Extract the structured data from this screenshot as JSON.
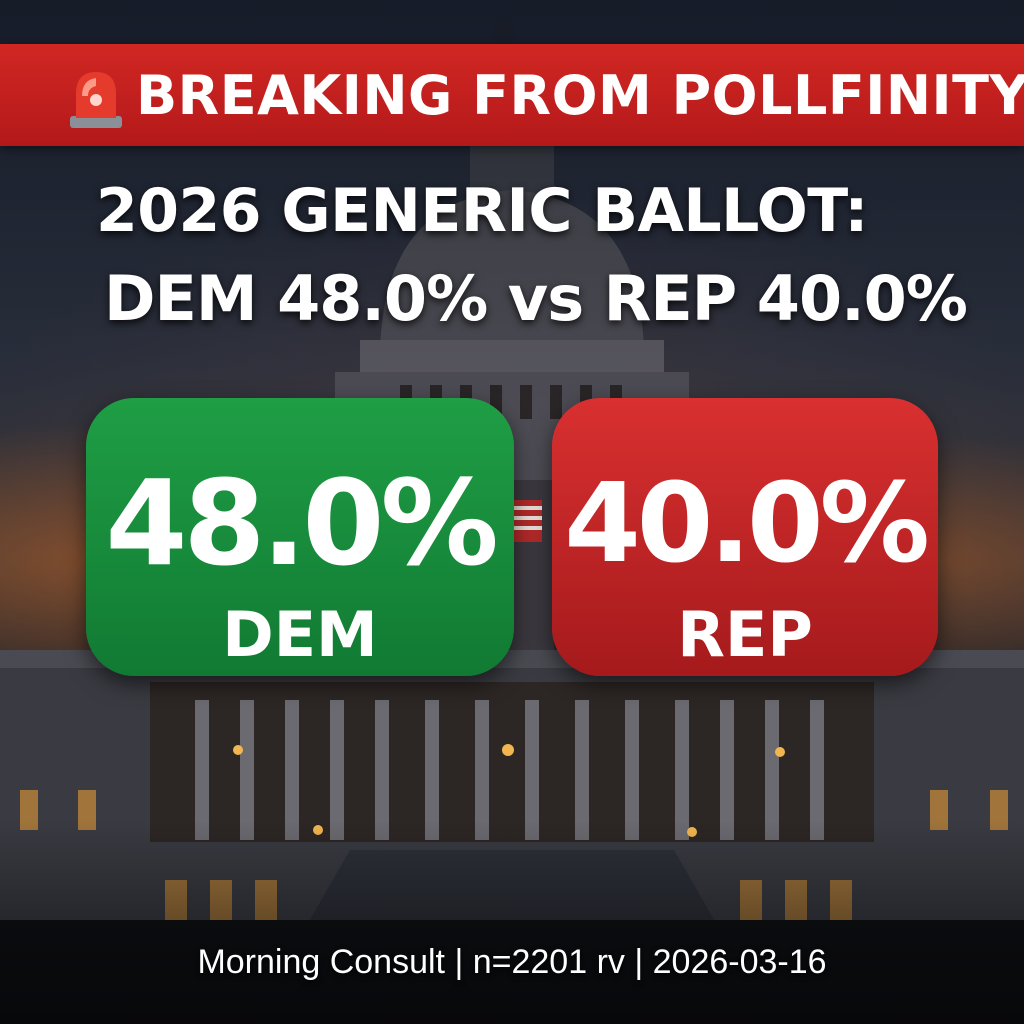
{
  "banner": {
    "icon": "siren-icon",
    "text": "BREAKING FROM POLLFINITY"
  },
  "headline": {
    "line1": "2026 GENERIC BALLOT:",
    "line2": "DEM 48.0% vs REP 40.0%"
  },
  "results": {
    "dem": {
      "value": "48.0%",
      "label": "DEM",
      "color": "#1a8f3e"
    },
    "rep": {
      "value": "40.0%",
      "label": "REP",
      "color": "#c62828"
    }
  },
  "footer": {
    "source": "Morning Consult | n=2201 rv | 2026-03-16"
  },
  "colors": {
    "banner": "#c21f1f"
  }
}
